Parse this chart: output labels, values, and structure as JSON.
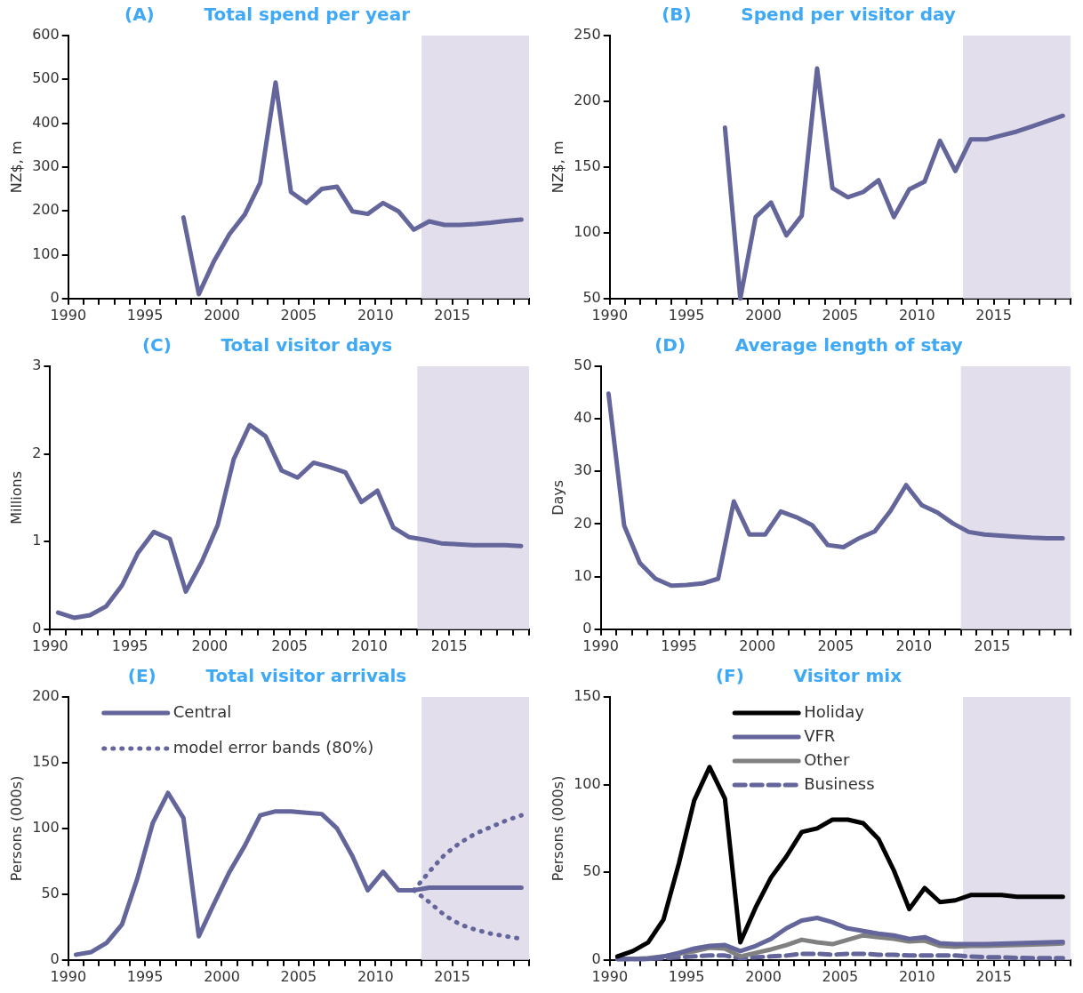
{
  "chart_data": [
    {
      "type": "line",
      "title": "(A)        Total spend per year",
      "ylabel": "NZ$, m",
      "xlim": [
        1990,
        2020
      ],
      "ylim": [
        0,
        600
      ],
      "yticks": [
        0,
        100,
        200,
        300,
        400,
        500,
        600
      ],
      "xticks": [
        1990,
        {
          "value": 1991,
          "label": null
        },
        {
          "value": 1992,
          "label": null
        },
        {
          "value": 1993,
          "label": null
        },
        {
          "value": 1994,
          "label": null
        },
        1995,
        {
          "value": 1996,
          "label": null
        },
        {
          "value": 1997,
          "label": null
        },
        {
          "value": 1998,
          "label": null
        },
        {
          "value": 1999,
          "label": null
        },
        2000,
        {
          "value": 2001,
          "label": null
        },
        {
          "value": 2002,
          "label": null
        },
        {
          "value": 2003,
          "label": null
        },
        {
          "value": 2004,
          "label": null
        },
        2005,
        {
          "value": 2006,
          "label": null
        },
        {
          "value": 2007,
          "label": null
        },
        {
          "value": 2008,
          "label": null
        },
        {
          "value": 2009,
          "label": null
        },
        2010,
        {
          "value": 2011,
          "label": null
        },
        {
          "value": 2012,
          "label": null
        },
        {
          "value": 2013,
          "label": null
        },
        {
          "value": 2014,
          "label": null
        },
        2015,
        {
          "value": 2016,
          "label": null
        },
        {
          "value": 2017,
          "label": null
        },
        {
          "value": 2018,
          "label": null
        },
        {
          "value": 2019,
          "label": null
        },
        {
          "value": 2020,
          "label": null
        }
      ],
      "x": [
        1997.5,
        1998.5,
        1999.5,
        2000.5,
        2001.5,
        2002.5,
        2003.5,
        2004.5,
        2005.5,
        2006.5,
        2007.5,
        2008.5,
        2009.5,
        2010.5,
        2011.5,
        2012.5,
        2013.5,
        2014.5,
        2015.5,
        2016.5,
        2017.5,
        2018.5,
        2019.5
      ],
      "series": [
        {
          "color": "#64659a",
          "values": [
            185,
            10,
            86,
            147,
            192,
            264,
            493,
            243,
            218,
            250,
            255,
            199,
            193,
            218,
            199,
            157,
            176,
            168,
            168,
            170,
            173,
            177,
            180
          ]
        }
      ],
      "bands": [
        {
          "axis": "x",
          "from": 2013,
          "to": 2020,
          "color": "#e3deec"
        }
      ],
      "grid": false
    },
    {
      "type": "line",
      "title": "(B)        Spend per visitor day",
      "ylabel": "NZ$, m",
      "xlim": [
        1990,
        2020
      ],
      "ylim": [
        50,
        250
      ],
      "yticks": [
        50,
        100,
        150,
        200,
        250
      ],
      "xticks": [
        1990,
        {
          "value": 1991,
          "label": null
        },
        {
          "value": 1992,
          "label": null
        },
        {
          "value": 1993,
          "label": null
        },
        {
          "value": 1994,
          "label": null
        },
        1995,
        {
          "value": 1996,
          "label": null
        },
        {
          "value": 1997,
          "label": null
        },
        {
          "value": 1998,
          "label": null
        },
        {
          "value": 1999,
          "label": null
        },
        2000,
        {
          "value": 2001,
          "label": null
        },
        {
          "value": 2002,
          "label": null
        },
        {
          "value": 2003,
          "label": null
        },
        {
          "value": 2004,
          "label": null
        },
        2005,
        {
          "value": 2006,
          "label": null
        },
        {
          "value": 2007,
          "label": null
        },
        {
          "value": 2008,
          "label": null
        },
        {
          "value": 2009,
          "label": null
        },
        2010,
        {
          "value": 2011,
          "label": null
        },
        {
          "value": 2012,
          "label": null
        },
        {
          "value": 2013,
          "label": null
        },
        {
          "value": 2014,
          "label": null
        },
        2015,
        {
          "value": 2016,
          "label": null
        },
        {
          "value": 2017,
          "label": null
        },
        {
          "value": 2018,
          "label": null
        },
        {
          "value": 2019,
          "label": null
        },
        {
          "value": 2020,
          "label": null
        }
      ],
      "x": [
        1997.5,
        1998.5,
        1999.5,
        2000.5,
        2001.5,
        2002.5,
        2003.5,
        2004.5,
        2005.5,
        2006.5,
        2007.5,
        2008.5,
        2009.5,
        2010.5,
        2011.5,
        2012.5,
        2013.5,
        2014.5,
        2015.5,
        2016.5,
        2017.5,
        2018.5,
        2019.5
      ],
      "series": [
        {
          "color": "#64659a",
          "values": [
            180,
            50,
            112,
            123,
            98,
            113,
            225,
            134,
            127,
            131,
            140,
            112,
            133,
            139,
            170,
            147,
            171,
            171,
            174,
            177,
            181,
            185,
            189
          ]
        }
      ],
      "bands": [
        {
          "axis": "x",
          "from": 2013,
          "to": 2020,
          "color": "#e3deec"
        }
      ],
      "grid": false
    },
    {
      "type": "line",
      "title": "(C)        Total visitor days",
      "ylabel": "Millions",
      "xlim": [
        1990,
        2020
      ],
      "ylim": [
        0,
        3
      ],
      "yticks": [
        0,
        1,
        2,
        3
      ],
      "xticks": [
        1990,
        {
          "value": 1991,
          "label": null
        },
        {
          "value": 1992,
          "label": null
        },
        {
          "value": 1993,
          "label": null
        },
        {
          "value": 1994,
          "label": null
        },
        1995,
        {
          "value": 1996,
          "label": null
        },
        {
          "value": 1997,
          "label": null
        },
        {
          "value": 1998,
          "label": null
        },
        {
          "value": 1999,
          "label": null
        },
        2000,
        {
          "value": 2001,
          "label": null
        },
        {
          "value": 2002,
          "label": null
        },
        {
          "value": 2003,
          "label": null
        },
        {
          "value": 2004,
          "label": null
        },
        2005,
        {
          "value": 2006,
          "label": null
        },
        {
          "value": 2007,
          "label": null
        },
        {
          "value": 2008,
          "label": null
        },
        {
          "value": 2009,
          "label": null
        },
        2010,
        {
          "value": 2011,
          "label": null
        },
        {
          "value": 2012,
          "label": null
        },
        {
          "value": 2013,
          "label": null
        },
        {
          "value": 2014,
          "label": null
        },
        2015,
        {
          "value": 2016,
          "label": null
        },
        {
          "value": 2017,
          "label": null
        },
        {
          "value": 2018,
          "label": null
        },
        {
          "value": 2019,
          "label": null
        },
        {
          "value": 2020,
          "label": null
        }
      ],
      "x": [
        1990.5,
        1991.5,
        1992.5,
        1993.5,
        1994.5,
        1995.5,
        1996.5,
        1997.5,
        1998.5,
        1999.5,
        2000.5,
        2001.5,
        2002.5,
        2003.5,
        2004.5,
        2005.5,
        2006.5,
        2007.5,
        2008.5,
        2009.5,
        2010.5,
        2011.5,
        2012.5,
        2013.5,
        2014.5,
        2015.5,
        2016.5,
        2017.5,
        2018.5,
        2019.5
      ],
      "series": [
        {
          "color": "#64659a",
          "values": [
            0.19,
            0.13,
            0.16,
            0.26,
            0.5,
            0.87,
            1.11,
            1.03,
            0.43,
            0.77,
            1.19,
            1.94,
            2.33,
            2.2,
            1.81,
            1.73,
            1.9,
            1.85,
            1.79,
            1.45,
            1.58,
            1.16,
            1.05,
            1.02,
            0.98,
            0.97,
            0.96,
            0.96,
            0.96,
            0.95
          ]
        }
      ],
      "bands": [
        {
          "axis": "x",
          "from": 2013,
          "to": 2020,
          "color": "#e3deec"
        }
      ],
      "grid": false
    },
    {
      "type": "line",
      "title": "(D)        Average length of stay",
      "ylabel": "Days",
      "xlim": [
        1990,
        2020
      ],
      "ylim": [
        0,
        50
      ],
      "yticks": [
        0,
        10,
        20,
        30,
        40,
        50
      ],
      "xticks": [
        1990,
        {
          "value": 1991,
          "label": null
        },
        {
          "value": 1992,
          "label": null
        },
        {
          "value": 1993,
          "label": null
        },
        {
          "value": 1994,
          "label": null
        },
        1995,
        {
          "value": 1996,
          "label": null
        },
        {
          "value": 1997,
          "label": null
        },
        {
          "value": 1998,
          "label": null
        },
        {
          "value": 1999,
          "label": null
        },
        2000,
        {
          "value": 2001,
          "label": null
        },
        {
          "value": 2002,
          "label": null
        },
        {
          "value": 2003,
          "label": null
        },
        {
          "value": 2004,
          "label": null
        },
        2005,
        {
          "value": 2006,
          "label": null
        },
        {
          "value": 2007,
          "label": null
        },
        {
          "value": 2008,
          "label": null
        },
        {
          "value": 2009,
          "label": null
        },
        2010,
        {
          "value": 2011,
          "label": null
        },
        {
          "value": 2012,
          "label": null
        },
        {
          "value": 2013,
          "label": null
        },
        {
          "value": 2014,
          "label": null
        },
        2015,
        {
          "value": 2016,
          "label": null
        },
        {
          "value": 2017,
          "label": null
        },
        {
          "value": 2018,
          "label": null
        },
        {
          "value": 2019,
          "label": null
        },
        {
          "value": 2020,
          "label": null
        }
      ],
      "x": [
        1990.5,
        1991.5,
        1992.5,
        1993.5,
        1994.5,
        1995.5,
        1996.5,
        1997.5,
        1998.5,
        1999.5,
        2000.5,
        2001.5,
        2002.5,
        2003.5,
        2004.5,
        2005.5,
        2006.5,
        2007.5,
        2008.5,
        2009.5,
        2010.5,
        2011.5,
        2012.5,
        2013.5,
        2014.5,
        2015.5,
        2016.5,
        2017.5,
        2018.5,
        2019.5
      ],
      "series": [
        {
          "color": "#64659a",
          "values": [
            44.8,
            19.7,
            12.6,
            9.6,
            8.3,
            8.4,
            8.7,
            9.6,
            24.3,
            18,
            18,
            22.4,
            21.3,
            19.8,
            16,
            15.6,
            17.3,
            18.6,
            22.5,
            27.4,
            23.6,
            22.2,
            20.1,
            18.5,
            18,
            17.8,
            17.6,
            17.4,
            17.3,
            17.3
          ]
        }
      ],
      "bands": [
        {
          "axis": "x",
          "from": 2013,
          "to": 2020,
          "color": "#e3deec"
        }
      ],
      "grid": false
    },
    {
      "type": "line",
      "title": "(E)        Total visitor arrivals",
      "ylabel": "Persons (000s)",
      "xlim": [
        1990,
        2020
      ],
      "ylim": [
        0,
        200
      ],
      "yticks": [
        0,
        50,
        100,
        150,
        200
      ],
      "xticks": [
        1990,
        {
          "value": 1991,
          "label": null
        },
        {
          "value": 1992,
          "label": null
        },
        {
          "value": 1993,
          "label": null
        },
        {
          "value": 1994,
          "label": null
        },
        1995,
        {
          "value": 1996,
          "label": null
        },
        {
          "value": 1997,
          "label": null
        },
        {
          "value": 1998,
          "label": null
        },
        {
          "value": 1999,
          "label": null
        },
        2000,
        {
          "value": 2001,
          "label": null
        },
        {
          "value": 2002,
          "label": null
        },
        {
          "value": 2003,
          "label": null
        },
        {
          "value": 2004,
          "label": null
        },
        2005,
        {
          "value": 2006,
          "label": null
        },
        {
          "value": 2007,
          "label": null
        },
        {
          "value": 2008,
          "label": null
        },
        {
          "value": 2009,
          "label": null
        },
        2010,
        {
          "value": 2011,
          "label": null
        },
        {
          "value": 2012,
          "label": null
        },
        {
          "value": 2013,
          "label": null
        },
        {
          "value": 2014,
          "label": null
        },
        2015,
        {
          "value": 2016,
          "label": null
        },
        {
          "value": 2017,
          "label": null
        },
        {
          "value": 2018,
          "label": null
        },
        {
          "value": 2019,
          "label": null
        },
        {
          "value": 2020,
          "label": null
        }
      ],
      "x": [
        1990.5,
        1991.5,
        1992.5,
        1993.5,
        1994.5,
        1995.5,
        1996.5,
        1997.5,
        1998.5,
        1999.5,
        2000.5,
        2001.5,
        2002.5,
        2003.5,
        2004.5,
        2005.5,
        2006.5,
        2007.5,
        2008.5,
        2009.5,
        2010.5,
        2011.5,
        2012.5,
        2013.5,
        2014.5,
        2015.5,
        2016.5,
        2017.5,
        2018.5,
        2019.5
      ],
      "series": [
        {
          "name": "Central",
          "color": "#64659a",
          "values": [
            4,
            6,
            13,
            27,
            62,
            104,
            127,
            108,
            18,
            43,
            67,
            87,
            110,
            113,
            113,
            112,
            111,
            100,
            79,
            53,
            67,
            53,
            53,
            55,
            55,
            55,
            55,
            55,
            55,
            55
          ]
        },
        {
          "name": "model error bands (80%)",
          "color": "#64659a",
          "line_style": "dotted",
          "x": [
            2012.5,
            2013.5,
            2014.5,
            2015.5,
            2016.5,
            2017.5,
            2018.5,
            2019.5
          ],
          "values": [
            53,
            67,
            80,
            89,
            96,
            101,
            106,
            110
          ]
        },
        {
          "color": "#64659a",
          "line_style": "dotted",
          "x": [
            2012.5,
            2013.5,
            2014.5,
            2015.5,
            2016.5,
            2017.5,
            2018.5,
            2019.5
          ],
          "values": [
            53,
            44,
            34,
            27,
            23,
            20,
            18,
            16
          ]
        }
      ],
      "legend": "top left",
      "bands": [
        {
          "axis": "x",
          "from": 2013,
          "to": 2020,
          "color": "#e3deec"
        }
      ],
      "grid": false
    },
    {
      "type": "line",
      "title": "(F)        Visitor mix",
      "ylabel": "Persons (000s)",
      "xlim": [
        1990,
        2020
      ],
      "ylim": [
        0,
        150
      ],
      "yticks": [
        0,
        50,
        100,
        150
      ],
      "xticks": [
        1990,
        {
          "value": 1991,
          "label": null
        },
        {
          "value": 1992,
          "label": null
        },
        {
          "value": 1993,
          "label": null
        },
        {
          "value": 1994,
          "label": null
        },
        1995,
        {
          "value": 1996,
          "label": null
        },
        {
          "value": 1997,
          "label": null
        },
        {
          "value": 1998,
          "label": null
        },
        {
          "value": 1999,
          "label": null
        },
        2000,
        {
          "value": 2001,
          "label": null
        },
        {
          "value": 2002,
          "label": null
        },
        {
          "value": 2003,
          "label": null
        },
        {
          "value": 2004,
          "label": null
        },
        2005,
        {
          "value": 2006,
          "label": null
        },
        {
          "value": 2007,
          "label": null
        },
        {
          "value": 2008,
          "label": null
        },
        {
          "value": 2009,
          "label": null
        },
        2010,
        {
          "value": 2011,
          "label": null
        },
        {
          "value": 2012,
          "label": null
        },
        {
          "value": 2013,
          "label": null
        },
        {
          "value": 2014,
          "label": null
        },
        2015,
        {
          "value": 2016,
          "label": null
        },
        {
          "value": 2017,
          "label": null
        },
        {
          "value": 2018,
          "label": null
        },
        {
          "value": 2019,
          "label": null
        },
        {
          "value": 2020,
          "label": null
        }
      ],
      "x": [
        1990.5,
        1991.5,
        1992.5,
        1993.5,
        1994.5,
        1995.5,
        1996.5,
        1997.5,
        1998.5,
        1999.5,
        2000.5,
        2001.5,
        2002.5,
        2003.5,
        2004.5,
        2005.5,
        2006.5,
        2007.5,
        2008.5,
        2009.5,
        2010.5,
        2011.5,
        2012.5,
        2013.5,
        2014.5,
        2015.5,
        2016.5,
        2017.5,
        2018.5,
        2019.5
      ],
      "series": [
        {
          "name": "Holiday",
          "color": "#000000",
          "values": [
            2,
            5,
            10,
            23,
            55,
            91,
            110,
            92,
            10,
            30,
            47,
            59,
            73,
            75,
            80,
            80,
            78,
            69,
            51,
            29,
            41,
            33,
            34,
            37,
            37,
            37,
            36,
            36,
            36,
            36
          ]
        },
        {
          "name": "VFR",
          "color": "#64659a",
          "values": [
            0.5,
            0.5,
            0.5,
            2,
            4,
            6.5,
            8,
            8.5,
            5,
            8,
            12,
            18,
            22.5,
            24,
            21.5,
            18,
            16.5,
            15,
            14,
            12,
            13,
            9.5,
            9,
            9,
            9,
            9.3,
            9.5,
            9.8,
            10,
            10.3
          ]
        },
        {
          "name": "Other",
          "color": "#808080",
          "values": [
            0.5,
            0.5,
            1,
            2,
            3.5,
            5,
            7,
            6.5,
            2,
            4,
            6,
            8.5,
            11.5,
            10,
            9,
            11.5,
            14,
            13,
            12,
            10.5,
            11,
            8,
            7.5,
            8,
            8,
            8.3,
            8.5,
            8.8,
            9,
            9.4
          ]
        },
        {
          "name": "Business",
          "color": "#64659a",
          "line_style": "dashed",
          "values": [
            0.5,
            0.5,
            0.5,
            1,
            1.5,
            2,
            2.5,
            2.5,
            1,
            1.5,
            2,
            2.5,
            3.5,
            3.5,
            3,
            3.5,
            3.5,
            3,
            3,
            2.5,
            2.5,
            2.5,
            2.5,
            2,
            1.5,
            1.5,
            1.2,
            1,
            1,
            1
          ]
        }
      ],
      "legend": "top",
      "bands": [
        {
          "axis": "x",
          "from": 2013,
          "to": 2020,
          "color": "#e3deec"
        }
      ],
      "grid": false
    }
  ]
}
